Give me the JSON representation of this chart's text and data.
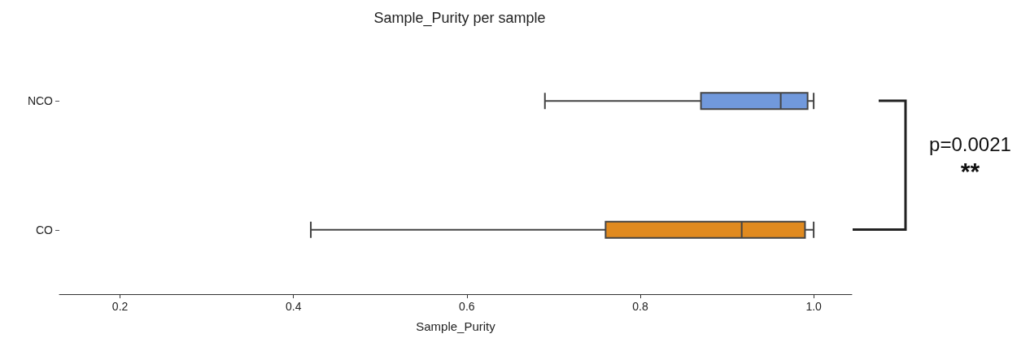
{
  "chart_data": {
    "type": "box",
    "orientation": "horizontal",
    "title": "Sample_Purity per sample",
    "xlabel": "Sample_Purity",
    "categories": [
      "NCO",
      "CO"
    ],
    "boxes": [
      {
        "low": 0.69,
        "q1": 0.87,
        "median": 0.962,
        "q3": 0.993,
        "high": 1.0
      },
      {
        "low": 0.42,
        "q1": 0.76,
        "median": 0.917,
        "q3": 0.99,
        "high": 1.0
      }
    ],
    "colors": [
      "#7199dc",
      "#e08a1f"
    ],
    "xlim": [
      0.13,
      1.044
    ],
    "xticks": [
      0.2,
      0.4,
      0.6,
      0.8,
      {
        "value": 1.0,
        "label": "1.0"
      }
    ],
    "annotations": [
      "p=0.0021",
      "**"
    ],
    "grid": false
  }
}
